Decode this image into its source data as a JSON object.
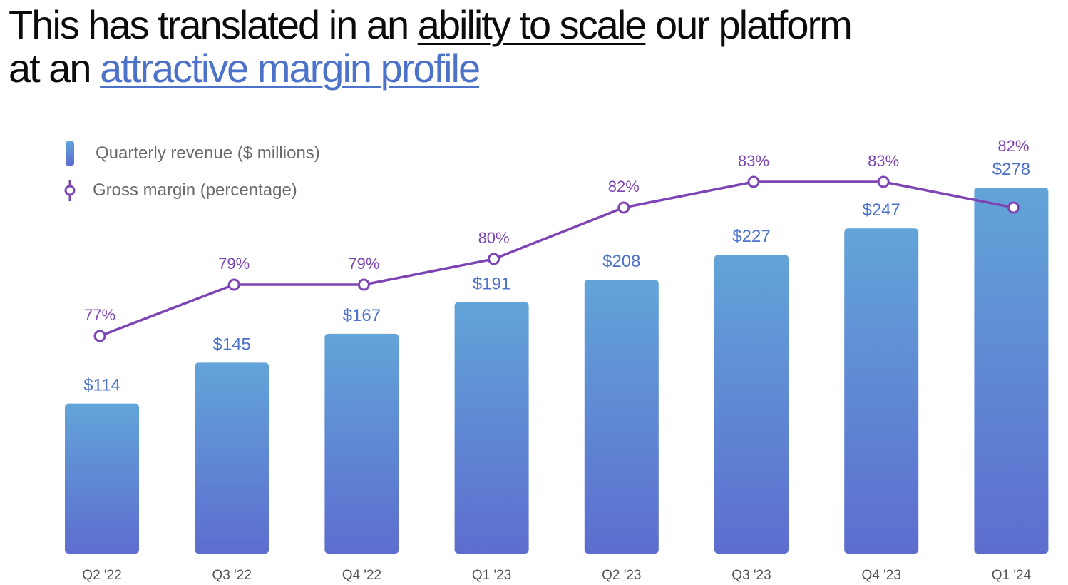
{
  "headline": {
    "part1": "This has translated in an ",
    "part2": "ability to scale",
    "part3": " our platform at an ",
    "part4": "attractive margin profile"
  },
  "legend": {
    "revenue_label": "Quarterly revenue ($ millions)",
    "margin_label": "Gross margin (percentage)"
  },
  "colors": {
    "bar_top": "#62a4d8",
    "bar_bottom": "#5d6dcf",
    "line": "#7d45b4",
    "revenue_label": "#4d72c9",
    "margin_label": "#7d45b4",
    "axis_label": "#555555"
  },
  "chart_data": {
    "type": "bar",
    "categories": [
      "Q2 '22",
      "Q3 '22",
      "Q4 '22",
      "Q1 '23",
      "Q2 '23",
      "Q3 '23",
      "Q4 '23",
      "Q1 '24"
    ],
    "series": [
      {
        "name": "Quarterly revenue ($ millions)",
        "type": "bar",
        "values": [
          114,
          145,
          167,
          191,
          208,
          227,
          247,
          278
        ],
        "labels": [
          "$114",
          "$145",
          "$167",
          "$191",
          "$208",
          "$227",
          "$247",
          "$278"
        ]
      },
      {
        "name": "Gross margin (percentage)",
        "type": "line",
        "values": [
          77,
          79,
          79,
          80,
          82,
          83,
          83,
          82
        ],
        "labels": [
          "77%",
          "79%",
          "79%",
          "80%",
          "82%",
          "83%",
          "83%",
          "82%"
        ]
      }
    ],
    "legend_position": "top-left",
    "grid": false
  }
}
